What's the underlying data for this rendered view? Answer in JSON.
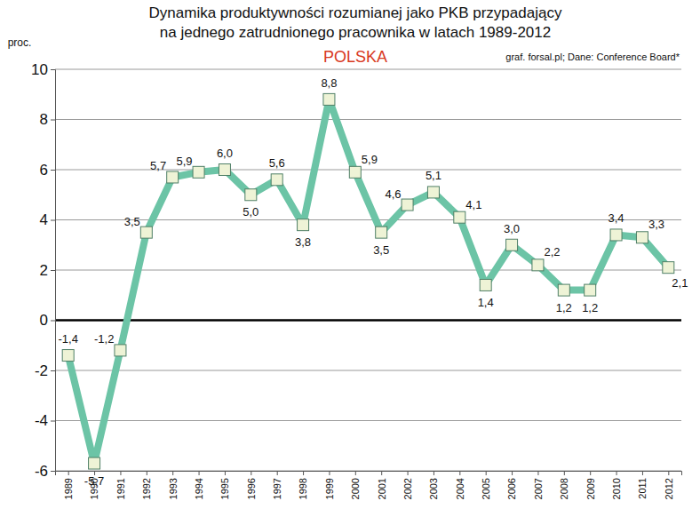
{
  "chart_data": {
    "type": "line",
    "title": [
      "Dynamika produktywności rozumianej jako PKB przypadający",
      "na jednego zatrudnionego pracownika w latach 1989-2012"
    ],
    "subtitle": "POLSKA",
    "annotation": "graf. forsal.pl;  Dane: Conference Board*",
    "y_label": "proc.",
    "categories": [
      "1989",
      "1990",
      "1991",
      "1992",
      "1993",
      "1994",
      "1995",
      "1996",
      "1997",
      "1998",
      "1999",
      "2000",
      "2001",
      "2002",
      "2003",
      "2004",
      "2005",
      "2006",
      "2007",
      "2008",
      "2009",
      "2010",
      "2011",
      "2012"
    ],
    "values": [
      -1.4,
      -5.7,
      -1.2,
      3.5,
      5.7,
      5.9,
      6.0,
      5.0,
      5.6,
      3.8,
      8.8,
      5.9,
      3.5,
      4.6,
      5.1,
      4.1,
      1.4,
      3.0,
      2.2,
      1.2,
      1.2,
      3.4,
      3.3,
      2.1
    ],
    "value_labels": [
      "-1,4",
      "-5,7",
      "-1,2",
      "3,5",
      "5,7",
      "5,9",
      "6,0",
      "5,0",
      "5,6",
      "3,8",
      "8,8",
      "5,9",
      "3,5",
      "4,6",
      "5,1",
      "4,1",
      "1,4",
      "3,0",
      "2,2",
      "1,2",
      "1,2",
      "3,4",
      "3,3",
      "2,1"
    ],
    "color": "#6cc4a6",
    "marker": "square",
    "ylim": [
      -6,
      10
    ],
    "yticks": [
      -6,
      -4,
      -2,
      0,
      2,
      4,
      6,
      8,
      10
    ],
    "grid": true,
    "data_labels": true
  }
}
